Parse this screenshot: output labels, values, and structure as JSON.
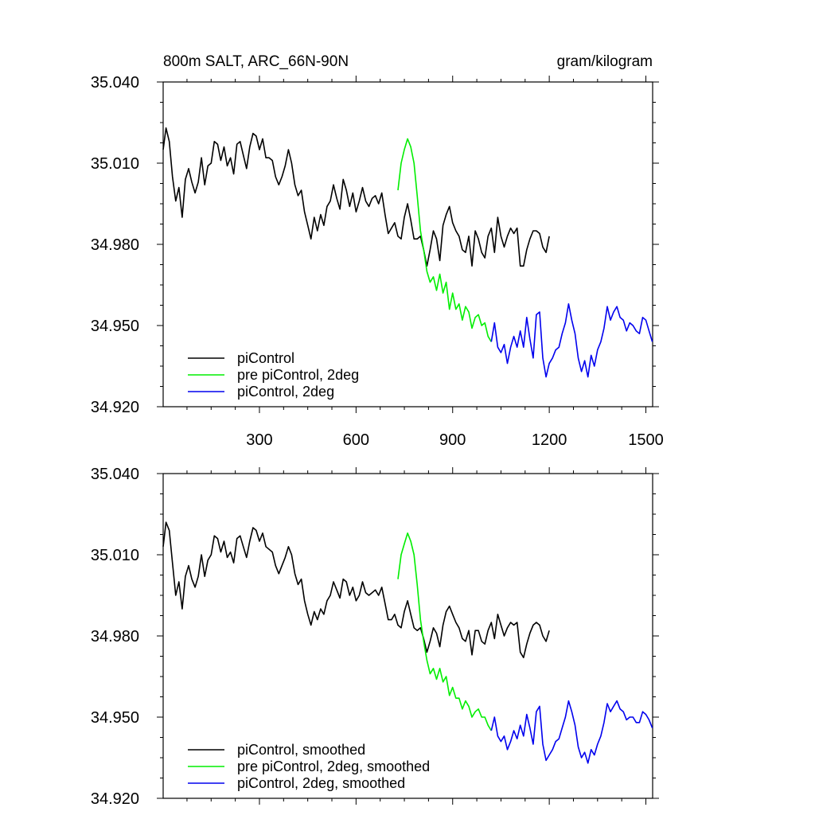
{
  "header": {
    "left_title": "800m SALT, ARC_66N-90N",
    "right_title": "gram/kilogram"
  },
  "colors": {
    "piControl": "#000000",
    "pre_piControl_2deg": "#00ee00",
    "piControl_2deg": "#0000ee",
    "axis": "#000000"
  },
  "chart_data": [
    {
      "type": "line",
      "ylim": [
        34.92,
        35.04
      ],
      "xlim": [
        1,
        1521
      ],
      "yticks": [
        34.92,
        34.95,
        34.98,
        35.01,
        35.04
      ],
      "ytick_labels": [
        "34.920",
        "34.950",
        "34.980",
        "35.010",
        "35.040"
      ],
      "xticks": [
        300,
        600,
        900,
        1200,
        1500
      ],
      "xtick_labels": [
        "300",
        "600",
        "900",
        "1200",
        "1500"
      ],
      "grid": false,
      "legend_position": "bottom-left",
      "series": [
        {
          "name": "piControl",
          "color_key": "piControl",
          "x": [
            1,
            10,
            20,
            30,
            40,
            50,
            60,
            70,
            80,
            90,
            100,
            110,
            120,
            130,
            140,
            150,
            160,
            170,
            180,
            190,
            200,
            210,
            220,
            230,
            240,
            250,
            260,
            270,
            280,
            290,
            300,
            310,
            320,
            330,
            340,
            350,
            360,
            370,
            380,
            390,
            400,
            410,
            420,
            430,
            440,
            450,
            460,
            470,
            480,
            490,
            500,
            510,
            520,
            530,
            540,
            550,
            560,
            570,
            580,
            590,
            600,
            610,
            620,
            630,
            640,
            650,
            660,
            670,
            680,
            690,
            700,
            710,
            720,
            730,
            740,
            750,
            760,
            770,
            780,
            790,
            800,
            810,
            820,
            830,
            840,
            850,
            860,
            870,
            880,
            890,
            900,
            910,
            920,
            930,
            940,
            950,
            960,
            970,
            980,
            990,
            1000,
            1010,
            1020,
            1030,
            1040,
            1050,
            1060,
            1070,
            1080,
            1090,
            1100,
            1110,
            1120,
            1130,
            1140,
            1150,
            1160,
            1170,
            1180,
            1190,
            1200
          ],
          "y": [
            35.015,
            35.023,
            35.018,
            35.005,
            34.996,
            35.001,
            34.99,
            35.004,
            35.008,
            35.003,
            34.999,
            35.003,
            35.012,
            35.002,
            35.009,
            35.01,
            35.018,
            35.017,
            35.011,
            35.016,
            35.009,
            35.012,
            35.006,
            35.017,
            35.018,
            35.013,
            35.008,
            35.016,
            35.021,
            35.02,
            35.015,
            35.019,
            35.012,
            35.012,
            35.011,
            35.005,
            35.002,
            35.005,
            35.009,
            35.015,
            35.01,
            35.002,
            34.998,
            35.0,
            34.992,
            34.987,
            34.982,
            34.99,
            34.985,
            34.991,
            34.987,
            34.994,
            34.996,
            35.002,
            34.997,
            34.993,
            35.004,
            35.0,
            34.994,
            34.999,
            34.992,
            34.996,
            35.001,
            34.996,
            34.994,
            34.997,
            34.998,
            34.995,
            34.999,
            34.991,
            34.984,
            34.986,
            34.988,
            34.983,
            34.982,
            34.99,
            34.995,
            34.989,
            34.982,
            34.982,
            34.983,
            34.978,
            34.972,
            34.978,
            34.985,
            34.982,
            34.974,
            34.987,
            34.991,
            34.994,
            34.988,
            34.985,
            34.983,
            34.978,
            34.977,
            34.983,
            34.972,
            34.985,
            34.982,
            34.977,
            34.975,
            34.983,
            34.986,
            34.977,
            34.99,
            34.983,
            34.979,
            34.983,
            34.986,
            34.984,
            34.986,
            34.972,
            34.972,
            34.978,
            34.982,
            34.985,
            34.985,
            34.984,
            34.979,
            34.977,
            34.983
          ]
        },
        {
          "name": "pre piControl, 2deg",
          "color_key": "pre_piControl_2deg",
          "x": [
            730,
            740,
            750,
            760,
            770,
            780,
            790,
            800,
            810,
            820,
            830,
            840,
            850,
            860,
            870,
            880,
            890,
            900,
            910,
            920,
            930,
            940,
            950,
            960,
            970,
            980,
            990,
            1000,
            1010,
            1020
          ],
          "y": [
            35.0,
            35.01,
            35.015,
            35.019,
            35.016,
            35.01,
            34.998,
            34.985,
            34.978,
            34.97,
            34.966,
            34.968,
            34.963,
            34.969,
            34.962,
            34.966,
            34.956,
            34.962,
            34.956,
            34.958,
            34.952,
            34.957,
            34.955,
            34.949,
            34.953,
            34.954,
            34.95,
            34.951,
            34.946,
            34.944
          ]
        },
        {
          "name": "piControl, 2deg",
          "color_key": "piControl_2deg",
          "x": [
            1020,
            1030,
            1040,
            1050,
            1060,
            1070,
            1080,
            1090,
            1100,
            1110,
            1120,
            1130,
            1140,
            1150,
            1160,
            1170,
            1180,
            1190,
            1200,
            1210,
            1220,
            1230,
            1240,
            1250,
            1260,
            1270,
            1280,
            1290,
            1300,
            1310,
            1320,
            1330,
            1340,
            1350,
            1360,
            1370,
            1380,
            1390,
            1400,
            1410,
            1420,
            1430,
            1440,
            1450,
            1460,
            1470,
            1480,
            1490,
            1500,
            1510,
            1520
          ],
          "y": [
            34.944,
            34.951,
            34.942,
            34.94,
            34.943,
            34.936,
            34.942,
            34.946,
            34.942,
            34.948,
            34.942,
            34.953,
            34.945,
            34.938,
            34.954,
            34.955,
            34.938,
            34.931,
            34.936,
            34.938,
            34.941,
            34.942,
            34.947,
            34.951,
            34.958,
            34.952,
            34.947,
            34.938,
            34.933,
            34.937,
            34.931,
            34.939,
            34.935,
            34.941,
            34.944,
            34.949,
            34.957,
            34.952,
            34.955,
            34.957,
            34.953,
            34.952,
            34.948,
            34.951,
            34.95,
            34.948,
            34.947,
            34.953,
            34.952,
            34.948,
            34.944
          ]
        }
      ],
      "legend": [
        {
          "label": "piControl",
          "color_key": "piControl"
        },
        {
          "label": "pre piControl, 2deg",
          "color_key": "pre_piControl_2deg"
        },
        {
          "label": "piControl, 2deg",
          "color_key": "piControl_2deg"
        }
      ]
    },
    {
      "type": "line",
      "ylim": [
        34.92,
        35.04
      ],
      "xlim": [
        1,
        1521
      ],
      "yticks": [
        34.92,
        34.95,
        34.98,
        35.01,
        35.04
      ],
      "ytick_labels": [
        "34.920",
        "34.950",
        "34.980",
        "35.010",
        "35.040"
      ],
      "xticks": [
        300,
        600,
        900,
        1200,
        1500
      ],
      "xtick_labels": [],
      "grid": false,
      "legend_position": "bottom-left",
      "series": [
        {
          "name": "piControl, smoothed",
          "color_key": "piControl",
          "x": [
            1,
            10,
            20,
            30,
            40,
            50,
            60,
            70,
            80,
            90,
            100,
            110,
            120,
            130,
            140,
            150,
            160,
            170,
            180,
            190,
            200,
            210,
            220,
            230,
            240,
            250,
            260,
            270,
            280,
            290,
            300,
            310,
            320,
            330,
            340,
            350,
            360,
            370,
            380,
            390,
            400,
            410,
            420,
            430,
            440,
            450,
            460,
            470,
            480,
            490,
            500,
            510,
            520,
            530,
            540,
            550,
            560,
            570,
            580,
            590,
            600,
            610,
            620,
            630,
            640,
            650,
            660,
            670,
            680,
            690,
            700,
            710,
            720,
            730,
            740,
            750,
            760,
            770,
            780,
            790,
            800,
            810,
            820,
            830,
            840,
            850,
            860,
            870,
            880,
            890,
            900,
            910,
            920,
            930,
            940,
            950,
            960,
            970,
            980,
            990,
            1000,
            1010,
            1020,
            1030,
            1040,
            1050,
            1060,
            1070,
            1080,
            1090,
            1100,
            1110,
            1120,
            1130,
            1140,
            1150,
            1160,
            1170,
            1180,
            1190,
            1200
          ],
          "y": [
            35.013,
            35.022,
            35.019,
            35.007,
            34.995,
            35.0,
            34.99,
            35.002,
            35.006,
            35.001,
            34.998,
            35.002,
            35.01,
            35.002,
            35.008,
            35.01,
            35.017,
            35.016,
            35.011,
            35.015,
            35.009,
            35.011,
            35.007,
            35.016,
            35.017,
            35.013,
            35.009,
            35.015,
            35.02,
            35.019,
            35.015,
            35.018,
            35.013,
            35.012,
            35.011,
            35.006,
            35.003,
            35.006,
            35.009,
            35.013,
            35.01,
            35.003,
            34.999,
            35.001,
            34.993,
            34.988,
            34.984,
            34.989,
            34.986,
            34.99,
            34.988,
            34.993,
            34.995,
            35.0,
            34.997,
            34.994,
            35.001,
            35.0,
            34.995,
            34.998,
            34.993,
            34.995,
            35.0,
            34.996,
            34.995,
            34.996,
            34.997,
            34.995,
            34.998,
            34.992,
            34.986,
            34.986,
            34.988,
            34.984,
            34.983,
            34.989,
            34.993,
            34.988,
            34.983,
            34.982,
            34.983,
            34.979,
            34.974,
            34.978,
            34.983,
            34.981,
            34.976,
            34.984,
            34.989,
            34.991,
            34.988,
            34.985,
            34.983,
            34.979,
            34.978,
            34.982,
            34.973,
            34.982,
            34.982,
            34.978,
            34.977,
            34.982,
            34.985,
            34.979,
            34.988,
            34.984,
            34.98,
            34.983,
            34.985,
            34.984,
            34.985,
            34.974,
            34.972,
            34.977,
            34.981,
            34.984,
            34.985,
            34.984,
            34.98,
            34.978,
            34.982
          ]
        },
        {
          "name": "pre piControl, 2deg, smoothed",
          "color_key": "pre_piControl_2deg",
          "x": [
            730,
            740,
            750,
            760,
            770,
            780,
            790,
            800,
            810,
            820,
            830,
            840,
            850,
            860,
            870,
            880,
            890,
            900,
            910,
            920,
            930,
            940,
            950,
            960,
            970,
            980,
            990,
            1000,
            1010,
            1020
          ],
          "y": [
            35.001,
            35.01,
            35.014,
            35.018,
            35.015,
            35.01,
            34.999,
            34.986,
            34.978,
            34.971,
            34.966,
            34.968,
            34.964,
            34.968,
            34.963,
            34.965,
            34.958,
            34.961,
            34.957,
            34.957,
            34.953,
            34.956,
            34.954,
            34.95,
            34.952,
            34.953,
            34.95,
            34.95,
            34.947,
            34.945
          ]
        },
        {
          "name": "piControl, 2deg, smoothed",
          "color_key": "piControl_2deg",
          "x": [
            1020,
            1030,
            1040,
            1050,
            1060,
            1070,
            1080,
            1090,
            1100,
            1110,
            1120,
            1130,
            1140,
            1150,
            1160,
            1170,
            1180,
            1190,
            1200,
            1210,
            1220,
            1230,
            1240,
            1250,
            1260,
            1270,
            1280,
            1290,
            1300,
            1310,
            1320,
            1330,
            1340,
            1350,
            1360,
            1370,
            1380,
            1390,
            1400,
            1410,
            1420,
            1430,
            1440,
            1450,
            1460,
            1470,
            1480,
            1490,
            1500,
            1510,
            1520
          ],
          "y": [
            34.945,
            34.95,
            34.943,
            34.941,
            34.943,
            34.938,
            34.941,
            34.945,
            34.942,
            34.947,
            34.943,
            34.951,
            34.946,
            34.94,
            34.952,
            34.954,
            34.94,
            34.934,
            34.936,
            34.938,
            34.941,
            34.942,
            34.946,
            34.95,
            34.956,
            34.952,
            34.947,
            34.939,
            34.935,
            34.937,
            34.933,
            34.938,
            34.936,
            34.94,
            34.943,
            34.948,
            34.955,
            34.952,
            34.954,
            34.956,
            34.953,
            34.952,
            34.949,
            34.95,
            34.95,
            34.948,
            34.948,
            34.952,
            34.951,
            34.949,
            34.946
          ]
        }
      ],
      "legend": [
        {
          "label": "piControl, smoothed",
          "color_key": "piControl"
        },
        {
          "label": "pre piControl, 2deg, smoothed",
          "color_key": "pre_piControl_2deg"
        },
        {
          "label": "piControl, 2deg, smoothed",
          "color_key": "piControl_2deg"
        }
      ]
    }
  ]
}
